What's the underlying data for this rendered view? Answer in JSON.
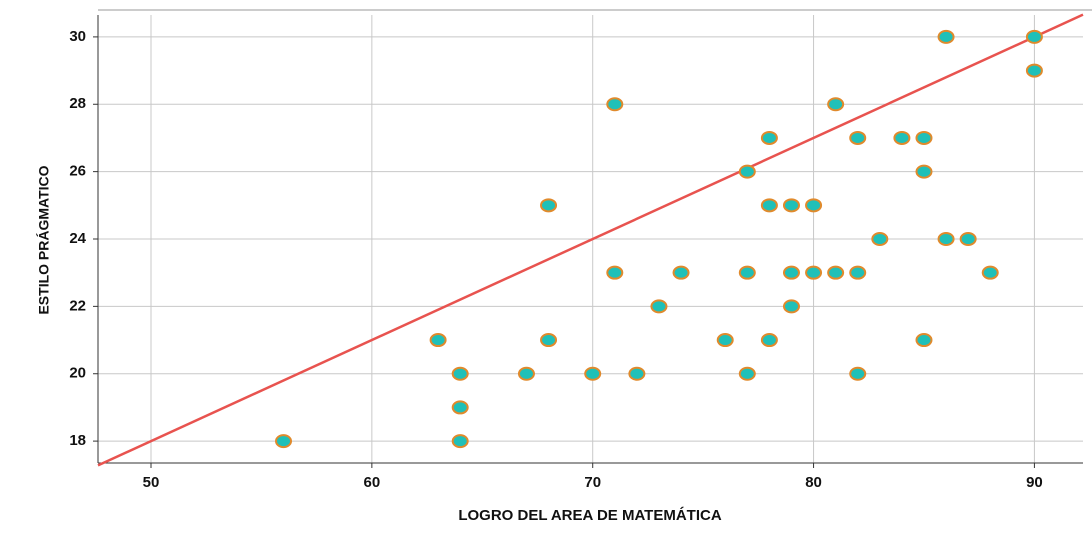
{
  "chart_data": {
    "type": "scatter",
    "x_label": "LOGRO DEL AREA DE MATEMÁTICA",
    "y_label": "ESTILO PRÁGMATICO",
    "xlim": [
      47.6,
      92.2
    ],
    "ylim": [
      17.35,
      30.65
    ],
    "xticks": [
      50,
      60,
      70,
      80,
      90
    ],
    "yticks": [
      18,
      20,
      22,
      24,
      26,
      28,
      30
    ],
    "grid": true,
    "series": [
      {
        "color": "#1fc0b8",
        "edge_color": "#e08a2c",
        "x": [
          56,
          63,
          64,
          64,
          64,
          67,
          68,
          68,
          70,
          71,
          71,
          72,
          73,
          74,
          76,
          77,
          77,
          77,
          78,
          78,
          78,
          79,
          79,
          79,
          80,
          80,
          81,
          81,
          82,
          82,
          82,
          83,
          84,
          85,
          85,
          85,
          86,
          86,
          87,
          88,
          90,
          90
        ],
        "values": [
          18,
          21,
          20,
          19,
          18,
          20,
          25,
          21,
          20,
          28,
          23,
          20,
          22,
          23,
          21,
          26,
          23,
          20,
          27,
          25,
          21,
          25,
          23,
          22,
          25,
          23,
          28,
          23,
          27,
          23,
          20,
          24,
          27,
          27,
          26,
          21,
          30,
          24,
          24,
          23,
          30,
          29
        ]
      }
    ],
    "fit_line": {
      "color": "#e8534f",
      "x": [
        47.6,
        92.2
      ],
      "y": [
        17.28,
        30.66
      ]
    }
  }
}
